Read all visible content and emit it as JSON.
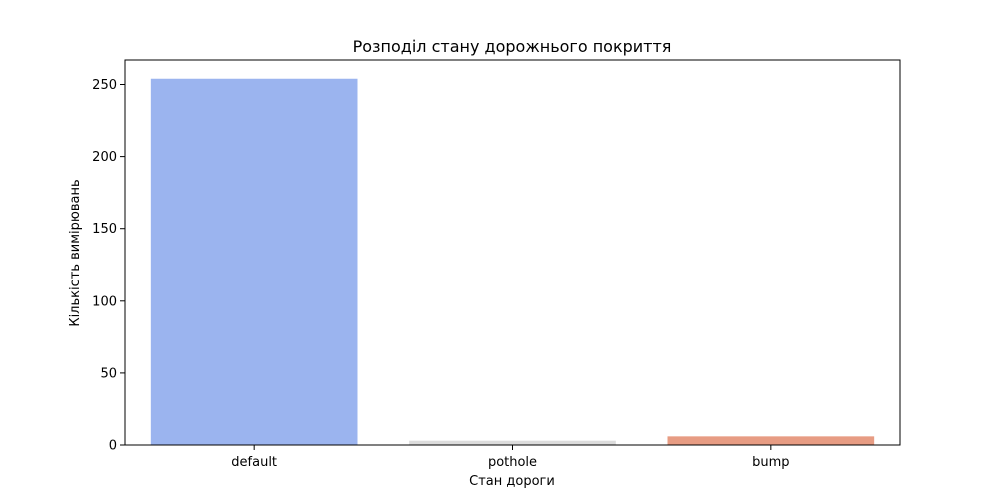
{
  "chart_data": {
    "type": "bar",
    "title": "Розподіл стану дорожнього покриття",
    "xlabel": "Стан дороги",
    "ylabel": "Кількість вимірювань",
    "categories": [
      "default",
      "pothole",
      "bump"
    ],
    "values": [
      254,
      3,
      6
    ],
    "colors": [
      "#9bb4ef",
      "#dcdcdc",
      "#e79c83"
    ],
    "ylim": [
      0,
      267
    ],
    "yticks": [
      0,
      50,
      100,
      150,
      200,
      250
    ],
    "grid": false,
    "legend": "none"
  }
}
